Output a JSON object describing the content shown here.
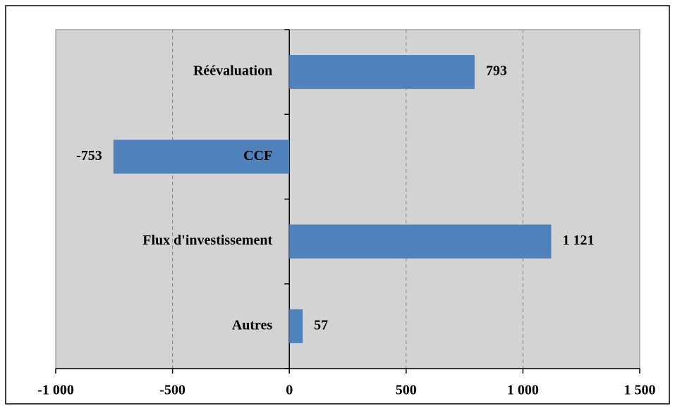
{
  "chart_data": {
    "type": "bar",
    "orientation": "horizontal",
    "categories": [
      "Réévaluation",
      "CCF",
      "Flux d'investissement",
      "Autres"
    ],
    "values": [
      793,
      -753,
      1121,
      57
    ],
    "value_labels": [
      "793",
      "-753",
      "1 121",
      "57"
    ],
    "color": "#4f81bd",
    "xlim": [
      -1000,
      1500
    ],
    "xticks": [
      {
        "value": -1000,
        "label": "-1 000"
      },
      -500,
      0,
      500,
      {
        "value": 1000,
        "label": "1 000"
      },
      {
        "value": 1500,
        "label": "1 500"
      }
    ],
    "grid": true
  }
}
